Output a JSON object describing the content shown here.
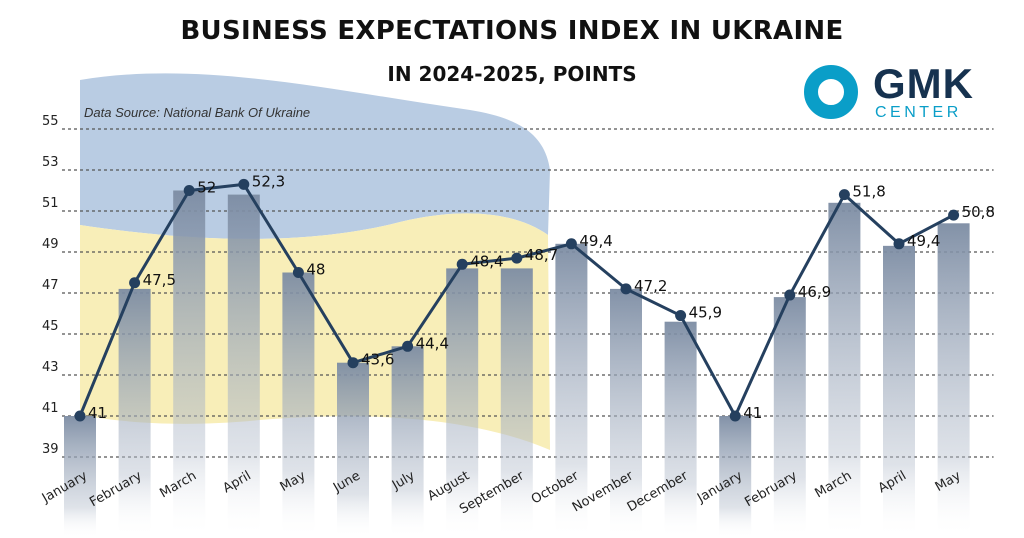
{
  "header": {
    "title": "BUSINESS EXPECTATIONS INDEX IN UKRAINE",
    "subtitle": "IN 2024-2025, POINTS",
    "source": "Data Source:  National Bank Of Ukraine"
  },
  "logo": {
    "text": "GMK",
    "sub": "CENTER"
  },
  "colors": {
    "line": "#25405f",
    "marker": "#25405f",
    "bar_top": "#7c8ca3",
    "grid": "#555555",
    "flag_blue": "#b9cce3",
    "flag_yellow": "#f8eeb8",
    "logo_ring": "#0a9ec8",
    "logo_text": "#16324f"
  },
  "chart_data": {
    "type": "bar+line",
    "categories": [
      "January",
      "February",
      "March",
      "April",
      "May",
      "June",
      "July",
      "August",
      "September",
      "October",
      "November",
      "December",
      "January",
      "February",
      "March",
      "April",
      "May"
    ],
    "values": [
      41,
      47.5,
      52,
      52.3,
      48,
      43.6,
      44.4,
      48.4,
      48.7,
      49.4,
      47.2,
      45.9,
      41,
      46.9,
      51.8,
      49.4,
      50.8
    ],
    "bar_values": [
      41,
      47.2,
      52,
      51.8,
      48,
      43.6,
      44.4,
      48.2,
      48.2,
      49.4,
      47.2,
      45.6,
      41,
      46.8,
      51.4,
      49.3,
      50.4
    ],
    "labels": [
      "41",
      "47,5",
      "52",
      "52,3",
      "48",
      "43,6",
      "44,4",
      "48,4",
      "48,7",
      "49,4",
      "47,2",
      "45,9",
      "41",
      "46,9",
      "51,8",
      "49,4",
      "50,8"
    ],
    "yticks": [
      39,
      41,
      43,
      45,
      47,
      49,
      51,
      53,
      55
    ],
    "ylim": [
      39,
      56
    ],
    "grid": true
  }
}
